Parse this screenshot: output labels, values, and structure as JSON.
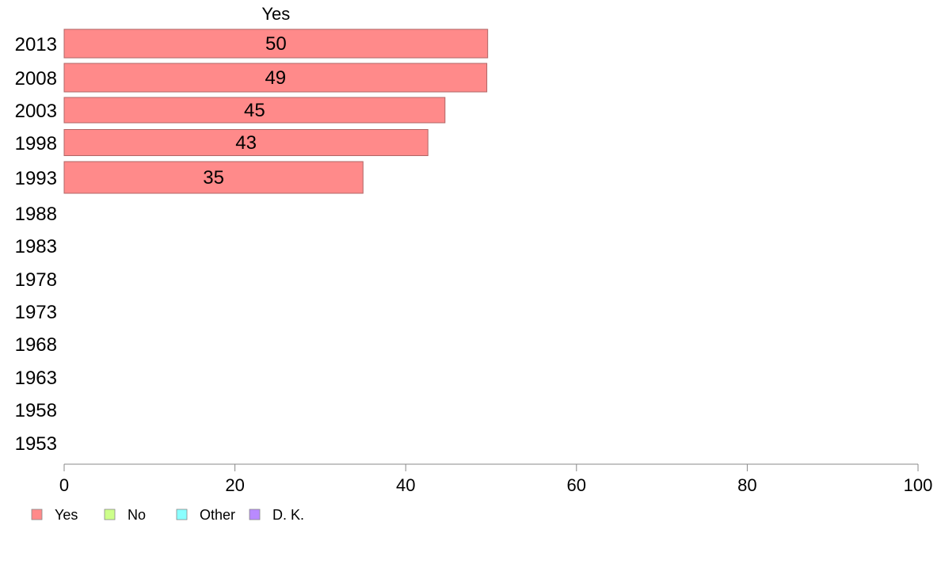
{
  "chart_data": {
    "type": "bar",
    "orientation": "horizontal",
    "series_title": "Yes",
    "categories": [
      "2013",
      "2008",
      "2003",
      "1998",
      "1993",
      "1988",
      "1983",
      "1978",
      "1973",
      "1968",
      "1963",
      "1958",
      "1953"
    ],
    "series": [
      {
        "name": "Yes",
        "color": "#ff8a8a",
        "values": [
          49.6,
          49.5,
          44.6,
          42.6,
          35.0,
          null,
          null,
          null,
          null,
          null,
          null,
          null,
          null
        ],
        "labels": [
          "50",
          "49",
          "45",
          "43",
          "35",
          "",
          "",
          "",
          "",
          "",
          "",
          "",
          ""
        ]
      }
    ],
    "xlim": [
      0,
      100
    ],
    "xticks": [
      "0",
      "20",
      "40",
      "60",
      "80",
      "100"
    ],
    "grid": false,
    "legend_position": "bottom-left",
    "legend": [
      {
        "label": "Yes",
        "color": "#ff8a8a"
      },
      {
        "label": "No",
        "color": "#cdff8a"
      },
      {
        "label": "Other",
        "color": "#8affff"
      },
      {
        "label": "D. K.",
        "color": "#b98aff"
      }
    ]
  }
}
